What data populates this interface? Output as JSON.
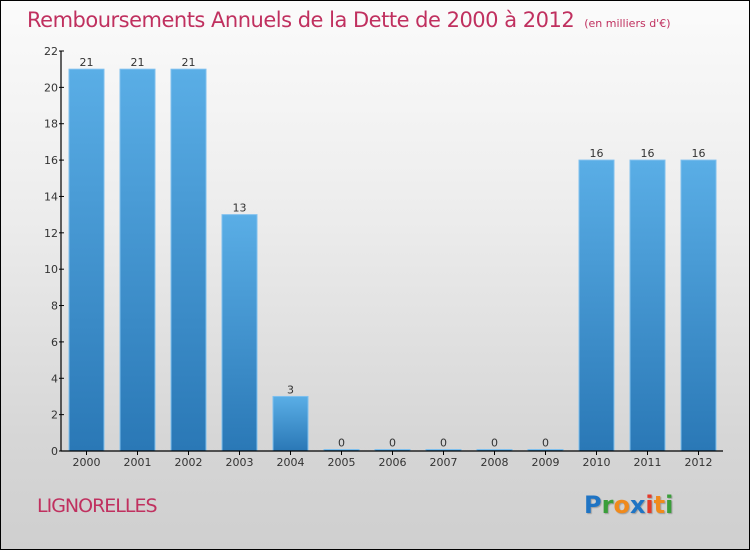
{
  "commune": "LIGNORELLES",
  "brand": {
    "letters": [
      {
        "ch": "P",
        "color": "#1f74c4"
      },
      {
        "ch": "r",
        "color": "#3a9e3a"
      },
      {
        "ch": "o",
        "color": "#f08a1c"
      },
      {
        "ch": "x",
        "color": "#1f74c4"
      },
      {
        "ch": "i",
        "color": "#e43a2a"
      },
      {
        "ch": "t",
        "color": "#f08a1c"
      },
      {
        "ch": "i",
        "color": "#3a9e3a"
      }
    ]
  },
  "colors": {
    "title": "#c0305f",
    "bar_top": "#5aaee6",
    "bar_bottom": "#2a78b6"
  },
  "chart_data": {
    "type": "bar",
    "title": "Remboursements Annuels de la Dette de 2000 à 2012",
    "subtitle": "(en milliers d'€)",
    "xlabel": "",
    "ylabel": "",
    "categories": [
      "2000",
      "2001",
      "2002",
      "2003",
      "2004",
      "2005",
      "2006",
      "2007",
      "2008",
      "2009",
      "2010",
      "2011",
      "2012"
    ],
    "values": [
      21,
      21,
      21,
      13,
      3,
      0,
      0,
      0,
      0,
      0,
      16,
      16,
      16
    ],
    "data_labels": [
      "21",
      "21",
      "21",
      "13",
      "3",
      "0",
      "0",
      "0",
      "0",
      "0",
      "16",
      "16",
      "16"
    ],
    "ylim": [
      0,
      22
    ],
    "yticks": [
      0,
      2,
      4,
      6,
      8,
      10,
      12,
      14,
      16,
      18,
      20,
      22
    ],
    "grid": false,
    "legend": "none"
  }
}
